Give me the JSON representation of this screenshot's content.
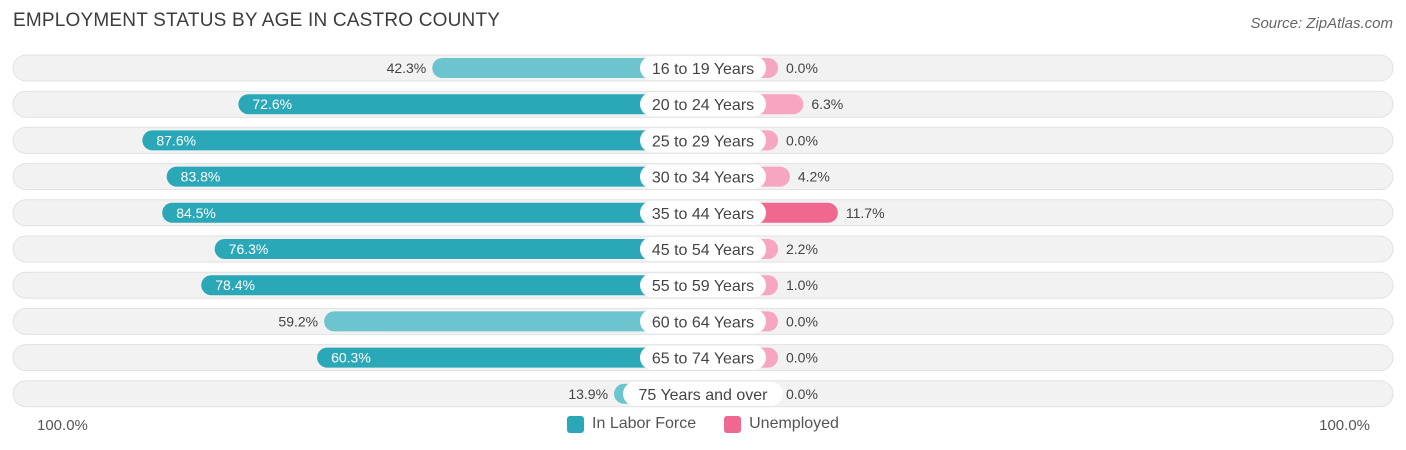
{
  "title": "EMPLOYMENT STATUS BY AGE IN CASTRO COUNTY",
  "source": "Source: ZipAtlas.com",
  "colors": {
    "in_labor_force": "#2ba8b8",
    "in_labor_force_light": "#6cc4ce",
    "unemployed": "#f06890",
    "unemployed_light": "#f6a6c0",
    "row_bg": "#f2f2f2"
  },
  "axis": {
    "left_label": "100.0%",
    "right_label": "100.0%"
  },
  "legend": [
    {
      "label": "In Labor Force",
      "color": "#2ba8b8"
    },
    {
      "label": "Unemployed",
      "color": "#f06890"
    }
  ],
  "chart_data": {
    "type": "bar",
    "orientation": "horizontal-diverging",
    "categories": [
      "16 to 19 Years",
      "20 to 24 Years",
      "25 to 29 Years",
      "30 to 34 Years",
      "35 to 44 Years",
      "45 to 54 Years",
      "55 to 59 Years",
      "60 to 64 Years",
      "65 to 74 Years",
      "75 Years and over"
    ],
    "series": [
      {
        "name": "In Labor Force",
        "values": [
          42.3,
          72.6,
          87.6,
          83.8,
          84.5,
          76.3,
          78.4,
          59.2,
          60.3,
          13.9
        ],
        "labels": [
          "42.3%",
          "72.6%",
          "87.6%",
          "83.8%",
          "84.5%",
          "76.3%",
          "78.4%",
          "59.2%",
          "60.3%",
          "13.9%"
        ]
      },
      {
        "name": "Unemployed",
        "values": [
          0.0,
          6.3,
          0.0,
          4.2,
          11.7,
          2.2,
          1.0,
          0.0,
          0.0,
          0.0
        ],
        "labels": [
          "0.0%",
          "6.3%",
          "0.0%",
          "4.2%",
          "11.7%",
          "2.2%",
          "1.0%",
          "0.0%",
          "0.0%",
          "0.0%"
        ]
      }
    ],
    "xlim": [
      -100,
      100
    ],
    "legend_position": "bottom-center"
  }
}
